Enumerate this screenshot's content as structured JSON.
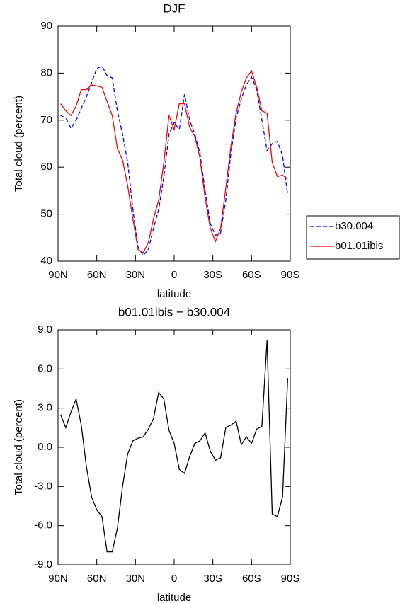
{
  "chart_data": [
    {
      "type": "line",
      "title": "DJF",
      "x_label": "latitude",
      "y_label": "Total cloud (percent)",
      "x": [
        88,
        84,
        80,
        76,
        72,
        68,
        64,
        60,
        56,
        52,
        48,
        44,
        40,
        36,
        32,
        28,
        24,
        20,
        16,
        12,
        8,
        4,
        0,
        -4,
        -8,
        -12,
        -16,
        -20,
        -24,
        -28,
        -32,
        -36,
        -40,
        -44,
        -48,
        -52,
        -56,
        -60,
        -64,
        -68,
        -72,
        -76,
        -80,
        -84,
        -88
      ],
      "series": [
        {
          "name": "b30.004",
          "color": "#0000ff",
          "dash": "dashed",
          "values": [
            71,
            70.5,
            68.3,
            70,
            72.5,
            75,
            78,
            81,
            81.5,
            79.5,
            79,
            72,
            67,
            61,
            51,
            43,
            41.2,
            42.5,
            47,
            51,
            58,
            67,
            69.5,
            68,
            75.5,
            70,
            67,
            63,
            55,
            48,
            45.5,
            46,
            53,
            63,
            70.5,
            74.5,
            77.5,
            79.2,
            76.5,
            70,
            63.5,
            65,
            65.5,
            62.5,
            54
          ]
        },
        {
          "name": "b01.01ibis",
          "color": "#ff0000",
          "dash": "solid",
          "values": [
            73.5,
            72,
            71,
            73,
            76.5,
            76.5,
            77.5,
            77.3,
            77,
            74,
            71,
            64,
            61.5,
            56,
            49,
            42.5,
            41.8,
            44,
            49,
            53,
            61,
            71,
            68,
            73.5,
            73.5,
            68.5,
            66.5,
            62,
            53.5,
            47,
            44.2,
            47,
            55.5,
            64.5,
            71.5,
            76,
            79,
            80.5,
            77,
            72,
            71.5,
            61,
            58,
            58.3,
            57.5
          ]
        }
      ],
      "xlim": [
        90,
        -90
      ],
      "xticks": [
        {
          "value": 90,
          "label": "90N"
        },
        {
          "value": 60,
          "label": "60N"
        },
        {
          "value": 30,
          "label": "30N"
        },
        0,
        {
          "value": -30,
          "label": "30S"
        },
        {
          "value": -60,
          "label": "60S"
        },
        {
          "value": -90,
          "label": "90S"
        }
      ],
      "ylim": [
        40,
        90
      ],
      "yticks": [
        40,
        50,
        60,
        70,
        80,
        90
      ],
      "legend": "right"
    },
    {
      "type": "line",
      "title": "b01.01ibis − b30.004",
      "x_label": "latitude",
      "y_label": "Total cloud (percent)",
      "x": [
        88,
        84,
        80,
        76,
        72,
        68,
        64,
        60,
        56,
        52,
        48,
        44,
        40,
        36,
        32,
        28,
        24,
        20,
        16,
        12,
        8,
        4,
        0,
        -4,
        -8,
        -12,
        -16,
        -20,
        -24,
        -28,
        -32,
        -36,
        -40,
        -44,
        -48,
        -52,
        -56,
        -60,
        -64,
        -68,
        -72,
        -76,
        -80,
        -84,
        -88
      ],
      "series": [
        {
          "name": null,
          "color": "#000000",
          "dash": "solid",
          "values": [
            2.5,
            1.5,
            2.7,
            3.7,
            1.7,
            -1.5,
            -3.8,
            -4.8,
            -5.3,
            -8,
            -8,
            -6.2,
            -3,
            -0.5,
            0.5,
            0.7,
            0.8,
            1.4,
            2.2,
            4.2,
            3.7,
            1.3,
            0.3,
            -1.7,
            -2,
            -0.7,
            0.3,
            0.5,
            1.1,
            -0.3,
            -1,
            -0.8,
            1.5,
            1.7,
            2,
            0.2,
            0.8,
            0.3,
            1.4,
            1.6,
            8.2,
            -5.1,
            -5.3,
            -3.8,
            5.3
          ]
        }
      ],
      "xlim": [
        90,
        -90
      ],
      "xticks": [
        {
          "value": 90,
          "label": "90N"
        },
        {
          "value": 60,
          "label": "60N"
        },
        {
          "value": 30,
          "label": "30N"
        },
        0,
        {
          "value": -30,
          "label": "30S"
        },
        {
          "value": -60,
          "label": "60S"
        },
        {
          "value": -90,
          "label": "90S"
        }
      ],
      "ylim": [
        -9,
        9
      ],
      "yticks": [
        {
          "value": -9,
          "label": "-9.0"
        },
        {
          "value": -6,
          "label": "-6.0"
        },
        {
          "value": -3,
          "label": "-3.0"
        },
        {
          "value": 0,
          "label": "0.0"
        },
        {
          "value": 3,
          "label": "3.0"
        },
        {
          "value": 6,
          "label": "6.0"
        },
        {
          "value": 9,
          "label": "9.0"
        }
      ]
    }
  ]
}
